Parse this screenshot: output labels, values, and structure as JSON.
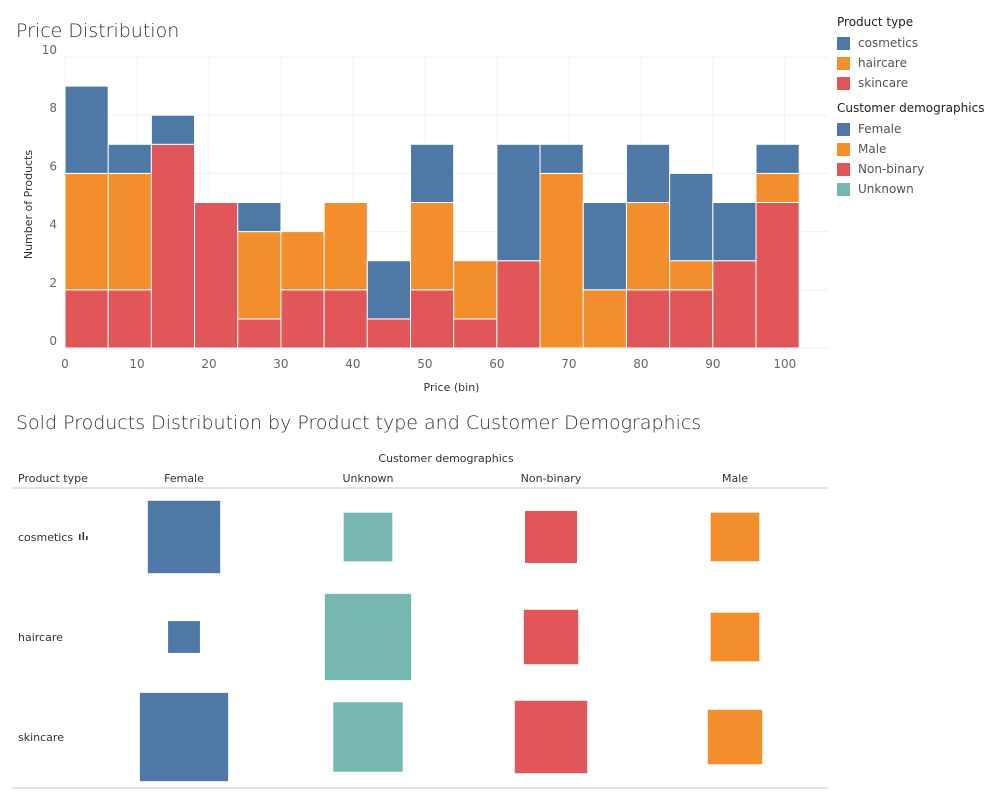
{
  "page": {
    "hist_title": "Price Distribution",
    "matrix_title": "Sold Products Distribution by Product type and Customer Demographics"
  },
  "legends": {
    "product_type": {
      "title": "Product type",
      "items": [
        {
          "label": "cosmetics",
          "color": "#4e79a7"
        },
        {
          "label": "haircare",
          "color": "#f28e2b"
        },
        {
          "label": "skincare",
          "color": "#e15759"
        }
      ]
    },
    "demographics": {
      "title": "Customer demographics",
      "items": [
        {
          "label": "Female",
          "color": "#4e79a7"
        },
        {
          "label": "Male",
          "color": "#f28e2b"
        },
        {
          "label": "Non-binary",
          "color": "#e15759"
        },
        {
          "label": "Unknown",
          "color": "#76b7b2"
        }
      ]
    }
  },
  "chart_data": [
    {
      "type": "bar",
      "subtype": "stacked-histogram",
      "title": "Price Distribution",
      "xlabel": "Price (bin)",
      "ylabel": "Number of Products",
      "xlim": [
        0,
        106
      ],
      "ylim": [
        0,
        10
      ],
      "x_ticks": [
        0,
        10,
        20,
        30,
        40,
        50,
        60,
        70,
        80,
        90,
        100
      ],
      "y_ticks": [
        0,
        2,
        4,
        6,
        8,
        10
      ],
      "bin_width": 6,
      "bins": [
        0,
        6,
        12,
        18,
        24,
        30,
        36,
        42,
        48,
        54,
        60,
        66,
        72,
        78,
        84,
        90,
        96
      ],
      "stack_order": [
        "skincare",
        "haircare",
        "cosmetics"
      ],
      "series": [
        {
          "name": "skincare",
          "color": "#e15759",
          "values": [
            2,
            2,
            7,
            5,
            1,
            2,
            2,
            1,
            2,
            1,
            3,
            0,
            0,
            2,
            2,
            3,
            5
          ]
        },
        {
          "name": "haircare",
          "color": "#f28e2b",
          "values": [
            4,
            4,
            0,
            0,
            3,
            2,
            3,
            0,
            3,
            2,
            0,
            6,
            2,
            3,
            1,
            0,
            1
          ]
        },
        {
          "name": "cosmetics",
          "color": "#4e79a7",
          "values": [
            3,
            1,
            1,
            0,
            1,
            0,
            0,
            2,
            2,
            0,
            4,
            1,
            3,
            2,
            3,
            2,
            1
          ]
        }
      ],
      "grid": true
    },
    {
      "type": "heatmap",
      "subtype": "square-size-matrix",
      "title": "Sold Products Distribution by Product type and Customer Demographics",
      "column_header": "Customer demographics",
      "row_header": "Product type",
      "rows": [
        "cosmetics",
        "haircare",
        "skincare"
      ],
      "columns": [
        "Female",
        "Unknown",
        "Non-binary",
        "Male"
      ],
      "column_colors": [
        "#4e79a7",
        "#76b7b2",
        "#e15759",
        "#f28e2b"
      ],
      "values": [
        [
          0.62,
          0.28,
          0.32,
          0.28
        ],
        [
          0.12,
          0.88,
          0.35,
          0.28
        ],
        [
          0.92,
          0.57,
          0.62,
          0.35
        ]
      ],
      "size_max": 1.0
    }
  ]
}
